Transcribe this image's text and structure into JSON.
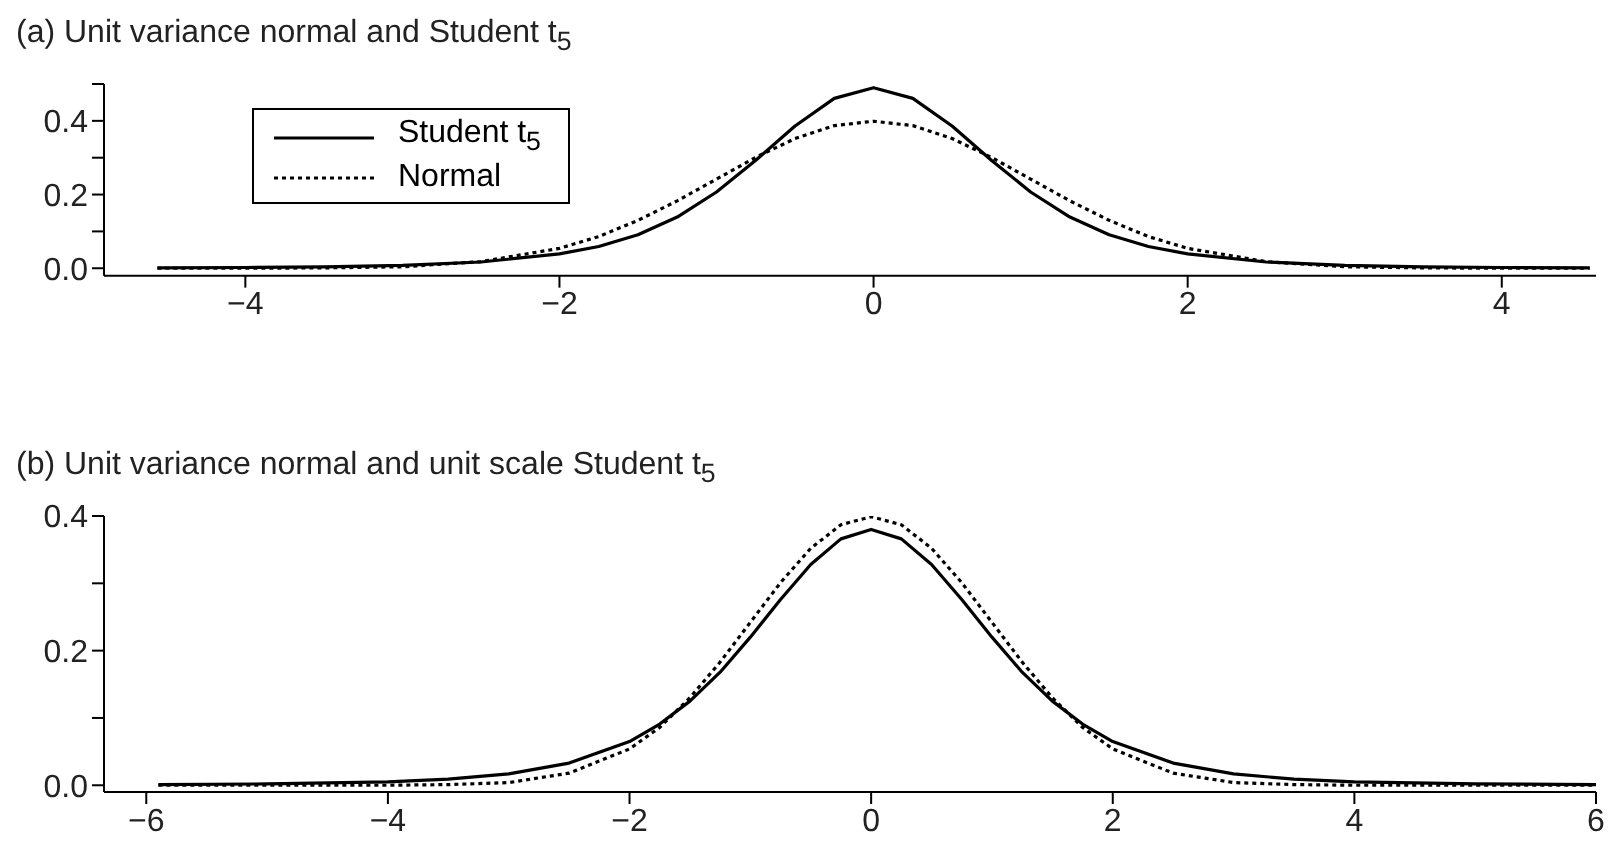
{
  "chart_data": [
    {
      "type": "line",
      "title": "(a) Unit variance normal and Student t$_{5}$",
      "legend": "top left",
      "xlim": [
        -4.9,
        4.6
      ],
      "ylim": [
        -0.02,
        0.5
      ],
      "xticks": [
        {
          "value": -4,
          "label": "−4"
        },
        {
          "value": -2,
          "label": "−2"
        },
        0,
        2,
        4
      ],
      "yticks": [
        {
          "value": 0,
          "label": "0.0"
        },
        {
          "value": 0.1,
          "label": null
        },
        {
          "value": 0.2,
          "label": "0.2"
        },
        {
          "value": 0.3,
          "label": null
        },
        {
          "value": 0.4,
          "label": "0.4"
        },
        {
          "value": 0.5,
          "label": null
        }
      ],
      "grid": false,
      "marker": "none",
      "series": [
        {
          "name": "Student t$_{5}$",
          "color": "#000000",
          "line_style": "solid",
          "x": [
            -4.56,
            -4,
            -3.5,
            -3,
            -2.5,
            -2,
            -1.75,
            -1.5,
            -1.25,
            -1,
            -0.75,
            -0.5,
            -0.25,
            0,
            0.25,
            0.5,
            0.75,
            1,
            1.25,
            1.5,
            1.75,
            2,
            2.5,
            3,
            3.5,
            4,
            4.56
          ],
          "values": [
            0.001,
            0.002,
            0.004,
            0.008,
            0.017,
            0.039,
            0.059,
            0.091,
            0.139,
            0.207,
            0.293,
            0.386,
            0.461,
            0.49,
            0.461,
            0.386,
            0.293,
            0.207,
            0.139,
            0.091,
            0.059,
            0.039,
            0.017,
            0.008,
            0.004,
            0.002,
            0.001
          ]
        },
        {
          "name": "Normal",
          "color": "#000000",
          "line_style": "dotted",
          "x": [
            -4.56,
            -4,
            -3.5,
            -3,
            -2.5,
            -2,
            -1.75,
            -1.5,
            -1.25,
            -1,
            -0.75,
            -0.5,
            -0.25,
            0,
            0.25,
            0.5,
            0.75,
            1,
            1.25,
            1.5,
            1.75,
            2,
            2.5,
            3,
            3.5,
            4,
            4.56
          ],
          "values": [
            0,
            0,
            0.001,
            0.004,
            0.018,
            0.054,
            0.086,
            0.13,
            0.183,
            0.242,
            0.301,
            0.352,
            0.387,
            0.399,
            0.387,
            0.352,
            0.301,
            0.242,
            0.183,
            0.13,
            0.086,
            0.054,
            0.018,
            0.004,
            0.001,
            0,
            0
          ]
        }
      ]
    },
    {
      "type": "line",
      "title": "(b) Unit variance normal and unit scale Student t$_{5}$",
      "xlim": [
        -6.35,
        6
      ],
      "ylim": [
        -0.01,
        0.4
      ],
      "xticks": [
        {
          "value": -6,
          "label": "−6"
        },
        {
          "value": -4,
          "label": "−4"
        },
        {
          "value": -2,
          "label": "−2"
        },
        0,
        2,
        4,
        6
      ],
      "yticks": [
        {
          "value": 0,
          "label": "0.0"
        },
        {
          "value": 0.1,
          "label": null
        },
        {
          "value": 0.2,
          "label": "0.2"
        },
        {
          "value": 0.3,
          "label": null
        },
        {
          "value": 0.4,
          "label": "0.4"
        }
      ],
      "grid": false,
      "marker": "none",
      "series": [
        {
          "color": "#000000",
          "line_style": "solid",
          "x": [
            -5.9,
            -5,
            -4,
            -3.5,
            -3,
            -2.5,
            -2,
            -1.75,
            -1.5,
            -1.25,
            -1,
            -0.75,
            -0.5,
            -0.25,
            0,
            0.25,
            0.5,
            0.75,
            1,
            1.25,
            1.5,
            1.75,
            2,
            2.5,
            3,
            3.5,
            4,
            5,
            6
          ],
          "values": [
            0.001,
            0.002,
            0.005,
            0.009,
            0.017,
            0.033,
            0.065,
            0.091,
            0.125,
            0.168,
            0.22,
            0.276,
            0.328,
            0.366,
            0.38,
            0.366,
            0.328,
            0.276,
            0.22,
            0.168,
            0.125,
            0.091,
            0.065,
            0.033,
            0.017,
            0.009,
            0.005,
            0.002,
            0.001
          ]
        },
        {
          "color": "#000000",
          "line_style": "dotted",
          "x": [
            -5.9,
            -5,
            -4,
            -3.5,
            -3,
            -2.5,
            -2,
            -1.75,
            -1.5,
            -1.25,
            -1,
            -0.75,
            -0.5,
            -0.25,
            0,
            0.25,
            0.5,
            0.75,
            1,
            1.25,
            1.5,
            1.75,
            2,
            2.5,
            3,
            3.5,
            4,
            5,
            6
          ],
          "values": [
            0,
            0,
            0,
            0.001,
            0.004,
            0.018,
            0.054,
            0.086,
            0.13,
            0.183,
            0.242,
            0.301,
            0.352,
            0.387,
            0.399,
            0.387,
            0.352,
            0.301,
            0.242,
            0.183,
            0.13,
            0.086,
            0.054,
            0.018,
            0.004,
            0.001,
            0,
            0,
            0
          ]
        }
      ]
    }
  ]
}
